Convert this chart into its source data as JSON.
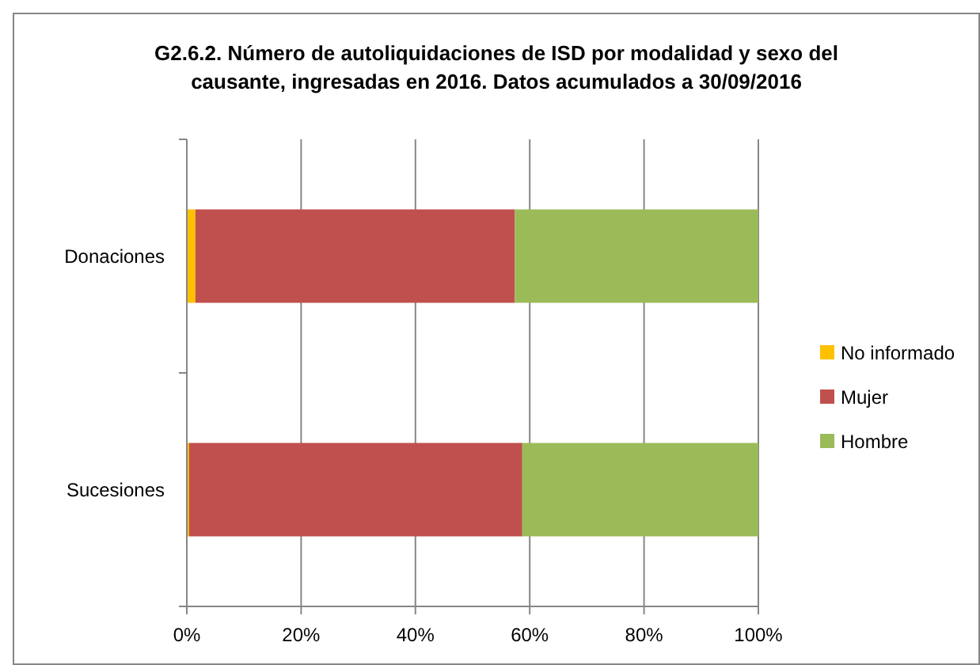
{
  "chart_data": {
    "type": "bar",
    "orientation": "horizontal",
    "stacked": true,
    "title": "G2.6.2. Número de autoliquidaciones de ISD por modalidad y sexo del causante, ingresadas en 2016. Datos acumulados a 30/09/2016",
    "categories": [
      "Donaciones",
      "Sucesiones"
    ],
    "series": [
      {
        "name": "No informado",
        "color": "#ffc000",
        "values": [
          1.5,
          0.4
        ]
      },
      {
        "name": "Mujer",
        "color": "#c0504d",
        "values": [
          55.9,
          58.3
        ]
      },
      {
        "name": "Hombre",
        "color": "#9bbb59",
        "values": [
          42.6,
          41.3
        ]
      }
    ],
    "xlim": [
      0,
      100
    ],
    "xticks": [
      {
        "value": 0,
        "label": "0%"
      },
      {
        "value": 20,
        "label": "20%"
      },
      {
        "value": 40,
        "label": "40%"
      },
      {
        "value": 60,
        "label": "60%"
      },
      {
        "value": 80,
        "label": "80%"
      },
      {
        "value": 100,
        "label": "100%"
      }
    ],
    "grid": "x",
    "legend": "right"
  }
}
